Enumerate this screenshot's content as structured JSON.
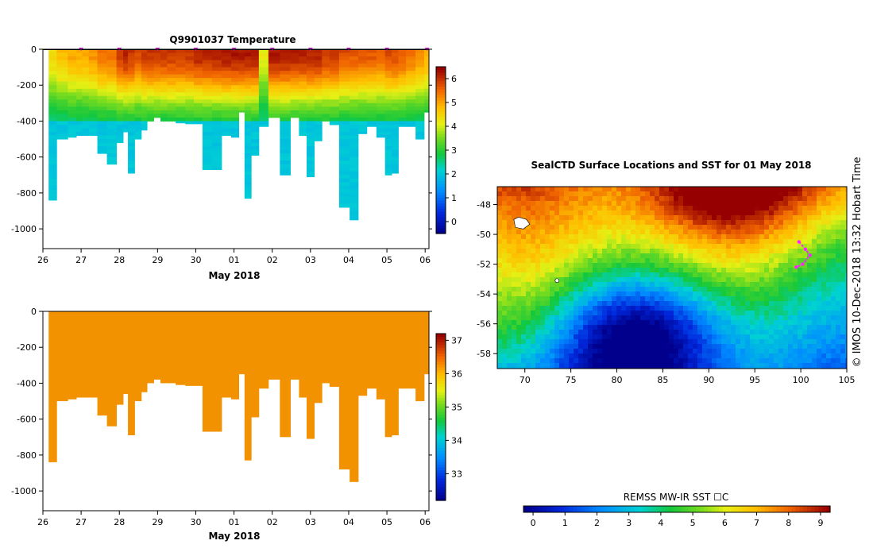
{
  "chart_data": [
    {
      "type": "heatmap",
      "id": "temperature",
      "title": "Q9901037  Temperature",
      "xlabel": "May 2018",
      "x_tick_labels": [
        "26",
        "27",
        "28",
        "29",
        "30",
        "01",
        "02",
        "03",
        "04",
        "05",
        "06"
      ],
      "y_tick_labels": [
        "0",
        "-200",
        "-400",
        "-600",
        "-800",
        "-1000"
      ],
      "y_ticks": [
        0,
        -200,
        -400,
        -600,
        -800,
        -1000
      ],
      "ylim": [
        -1110,
        0
      ],
      "xlim_days": [
        0,
        10.1
      ],
      "colorbar": {
        "ticks": [
          0,
          1,
          2,
          3,
          4,
          5,
          6
        ],
        "tick_labels": [
          "0",
          "1",
          "2",
          "3",
          "4",
          "5",
          "6"
        ],
        "range": [
          -0.5,
          6.5
        ]
      },
      "profiles_day": [
        0.22,
        0.5,
        0.8,
        0.95,
        1.1,
        1.3,
        1.55,
        1.8,
        2.05,
        2.15,
        2.3,
        2.5,
        2.65,
        2.8,
        3.0,
        3.15,
        3.35,
        3.6,
        3.85,
        4.05,
        4.3,
        4.55,
        4.8,
        5.05,
        5.2,
        5.35,
        5.55,
        5.75,
        6.05,
        6.35,
        6.6,
        6.8,
        7.0,
        7.2,
        7.4,
        7.6,
        7.9,
        8.15,
        8.35,
        8.6,
        8.85,
        9.05,
        9.2,
        9.4,
        9.6,
        9.9,
        10.05
      ],
      "profiles_depth": [
        840,
        500,
        490,
        480,
        480,
        480,
        580,
        640,
        520,
        460,
        690,
        500,
        450,
        400,
        380,
        400,
        400,
        410,
        415,
        415,
        670,
        670,
        480,
        490,
        350,
        830,
        590,
        430,
        380,
        700,
        380,
        480,
        710,
        510,
        400,
        420,
        880,
        950,
        470,
        430,
        490,
        700,
        690,
        430,
        430,
        500,
        350
      ],
      "profiles_surface_temp": [
        4.5,
        4.8,
        5.0,
        5.0,
        5.0,
        5.2,
        5.5,
        5.5,
        6.0,
        6.2,
        6.0,
        5.8,
        6.0,
        6.0,
        6.0,
        6.0,
        6.0,
        6.0,
        6.0,
        6.2,
        6.2,
        6.2,
        6.3,
        6.3,
        6.3,
        6.3,
        6.3,
        4.2,
        6.3,
        6.3,
        6.2,
        6.2,
        6.2,
        6.2,
        6.0,
        6.0,
        5.8,
        5.7,
        5.7,
        5.7,
        5.6,
        5.8,
        5.8,
        5.7,
        5.5,
        5.2,
        5.0
      ],
      "surface_markers_day": [
        1,
        2,
        3,
        4,
        5,
        6,
        7,
        8,
        9,
        10.05
      ]
    },
    {
      "type": "heatmap",
      "id": "salinity",
      "xlabel": "May 2018",
      "x_tick_labels": [
        "26",
        "27",
        "28",
        "29",
        "30",
        "01",
        "02",
        "03",
        "04",
        "05",
        "06"
      ],
      "y_tick_labels": [
        "0",
        "-200",
        "-400",
        "-600",
        "-800",
        "-1000"
      ],
      "y_ticks": [
        0,
        -200,
        -400,
        -600,
        -800,
        -1000
      ],
      "ylim": [
        -1110,
        0
      ],
      "xlim_days": [
        0,
        10.1
      ],
      "fill_value": 35.9,
      "colorbar": {
        "ticks": [
          33,
          34,
          35,
          36,
          37
        ],
        "tick_labels": [
          "33",
          "34",
          "35",
          "36",
          "37"
        ],
        "range": [
          32.2,
          37.2
        ]
      }
    },
    {
      "type": "heatmap",
      "id": "sst_map",
      "title": "SealCTD Surface Locations and SST for 01 May 2018",
      "x_tick_labels": [
        "70",
        "75",
        "80",
        "85",
        "90",
        "95",
        "100",
        "105"
      ],
      "x_ticks": [
        70,
        75,
        80,
        85,
        90,
        95,
        100,
        105
      ],
      "y_tick_labels": [
        "-48",
        "-50",
        "-52",
        "-54",
        "-56",
        "-58"
      ],
      "y_ticks": [
        -48,
        -50,
        -52,
        -54,
        -56,
        -58
      ],
      "xlim": [
        67,
        105
      ],
      "ylim": [
        -59,
        -46.8
      ],
      "colorbar_label": "REMSS MW-IR SST ☐C",
      "colorbar": {
        "ticks": [
          0,
          1,
          2,
          3,
          4,
          5,
          6,
          7,
          8,
          9
        ],
        "tick_labels": [
          "0",
          "1",
          "2",
          "3",
          "4",
          "5",
          "6",
          "7",
          "8",
          "9"
        ],
        "range": [
          -0.3,
          9.3
        ]
      },
      "track_lon": [
        99.8,
        100.5,
        101.0,
        100.2,
        99.5
      ],
      "track_lat": [
        -50.5,
        -51.0,
        -51.4,
        -52.0,
        -52.2
      ]
    }
  ],
  "credit": "©  IMOS 10-Dec-2018 13:32 Hobart Time",
  "colors": {
    "salinity_fill": "#f39200",
    "track": "#ff22ff",
    "axis": "#000000"
  }
}
